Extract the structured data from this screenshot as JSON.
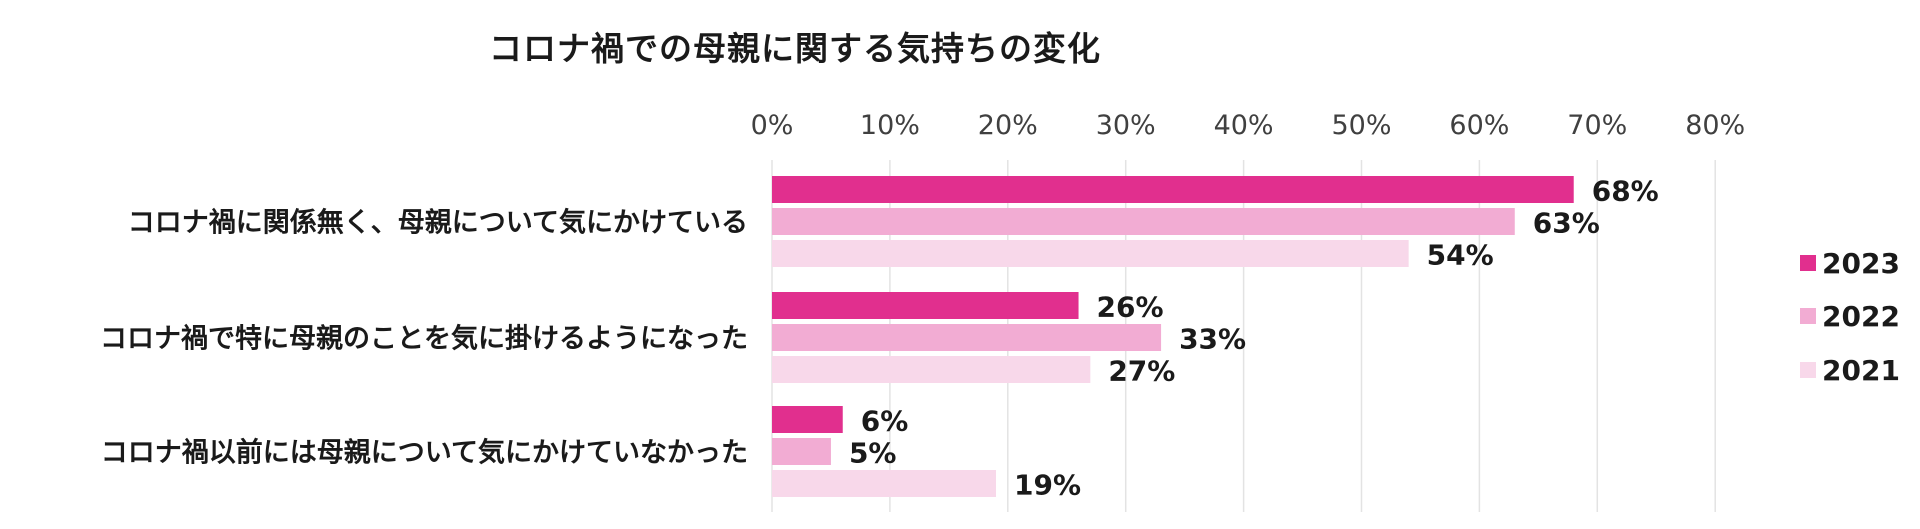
{
  "chart_data": {
    "type": "bar",
    "orientation": "horizontal",
    "title": "コロナ禍での母親に関する気持ちの変化",
    "categories": [
      "コロナ禍に関係無く、母親について気にかけている",
      "コロナ禍で特に母親のことを気に掛けるようになった",
      "コロナ禍以前には母親について気にかけていなかった"
    ],
    "series": [
      {
        "name": "2023",
        "values": [
          68,
          26,
          6
        ],
        "labels": [
          "68%",
          "26%",
          "6%"
        ],
        "color": "#e12f8e"
      },
      {
        "name": "2022",
        "values": [
          63,
          33,
          5
        ],
        "labels": [
          "63%",
          "33%",
          "5%"
        ],
        "color": "#f2acd3"
      },
      {
        "name": "2021",
        "values": [
          54,
          27,
          19
        ],
        "labels": [
          "54%",
          "27%",
          "19%"
        ],
        "color": "#f8d8ea"
      }
    ],
    "xlim": [
      0,
      80
    ],
    "ticks": [
      0,
      10,
      20,
      30,
      40,
      50,
      60,
      70,
      80
    ],
    "tick_labels": [
      "0%",
      "10%",
      "20%",
      "30%",
      "40%",
      "50%",
      "60%",
      "70%",
      "80%"
    ],
    "grid": true,
    "legend_position": "right"
  }
}
